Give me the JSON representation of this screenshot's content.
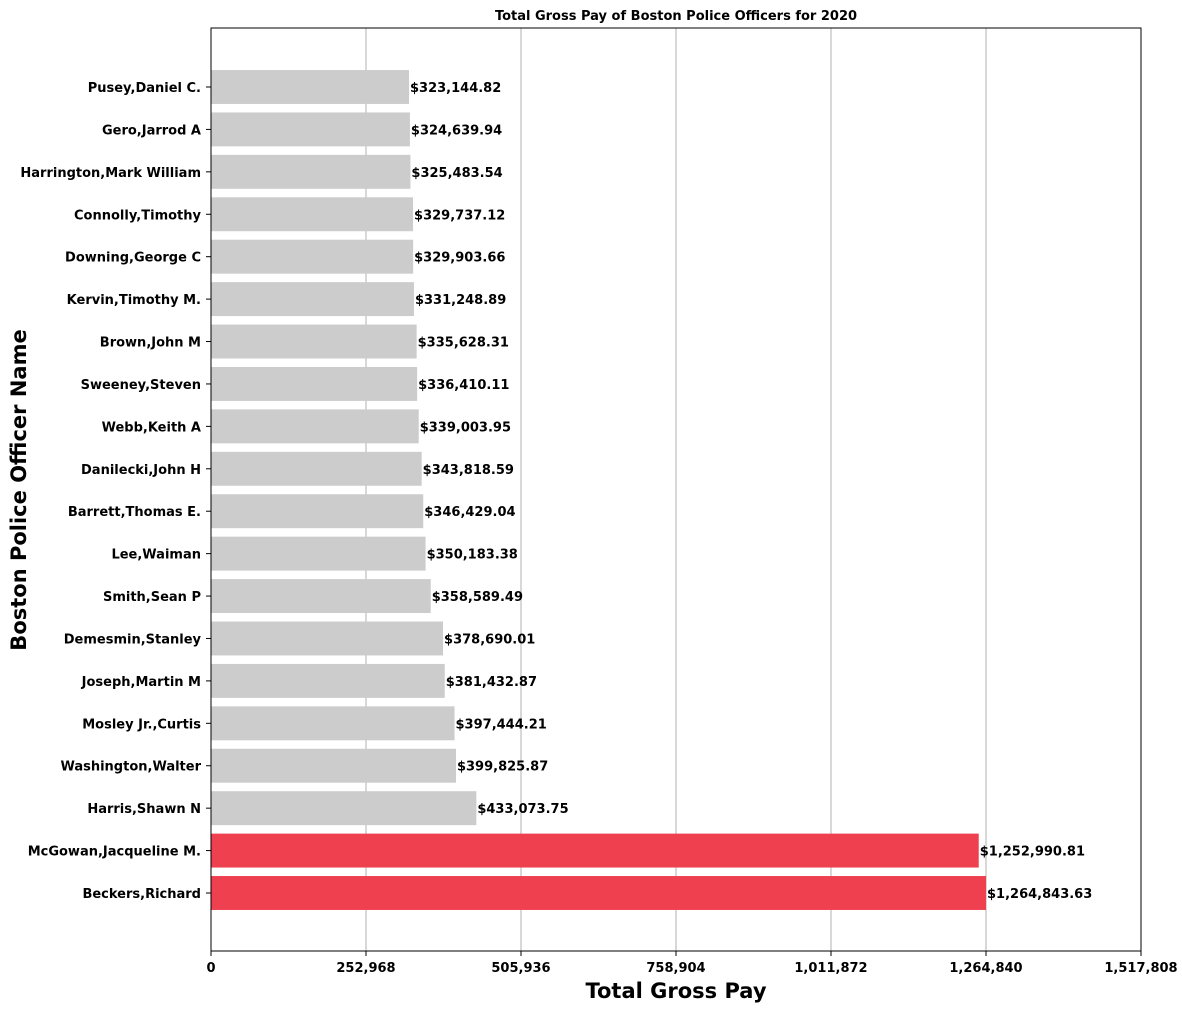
{
  "chart_data": {
    "type": "bar",
    "orientation": "horizontal",
    "title": "Total  Gross Pay of Boston Police Officers for 2020",
    "xlabel": "Total Gross Pay",
    "ylabel": "Boston Police Officer Name",
    "xlim": [
      0,
      1517808
    ],
    "xticks": [
      0,
      252968,
      505936,
      758904,
      1011872,
      1264840,
      1517808
    ],
    "xtick_labels": [
      "0",
      "252,968",
      "505,936",
      "758,904",
      "1,011,872",
      "1,264,840",
      "1,517,808"
    ],
    "grid": "x-axis vertical lines",
    "colors": {
      "default_bar": "#cccccc",
      "highlight_bar": "#ef4050",
      "grid": "#b0b0b0",
      "text": "#000000"
    },
    "categories": [
      "Pusey,Daniel C.",
      "Gero,Jarrod A",
      "Harrington,Mark William",
      "Connolly,Timothy",
      "Downing,George C",
      "Kervin,Timothy M.",
      "Brown,John M",
      "Sweeney,Steven",
      "Webb,Keith A",
      "Danilecki,John H",
      "Barrett,Thomas E.",
      "Lee,Waiman",
      "Smith,Sean P",
      "Demesmin,Stanley",
      "Joseph,Martin M",
      "Mosley Jr.,Curtis",
      "Washington,Walter",
      "Harris,Shawn N",
      "McGowan,Jacqueline M.",
      "Beckers,Richard"
    ],
    "values": [
      323144.82,
      324639.94,
      325483.54,
      329737.12,
      329903.66,
      331248.89,
      335628.31,
      336410.11,
      339003.95,
      343818.59,
      346429.04,
      350183.38,
      358589.49,
      378690.01,
      381432.87,
      397444.21,
      399825.87,
      433073.75,
      1252990.81,
      1264843.63
    ],
    "value_labels": [
      "$323,144.82",
      "$324,639.94",
      "$325,483.54",
      "$329,737.12",
      "$329,903.66",
      "$331,248.89",
      "$335,628.31",
      "$336,410.11",
      "$339,003.95",
      "$343,818.59",
      "$346,429.04",
      "$350,183.38",
      "$358,589.49",
      "$378,690.01",
      "$381,432.87",
      "$397,444.21",
      "$399,825.87",
      "$433,073.75",
      "$1,252,990.81",
      "$1,264,843.63"
    ],
    "highlighted": [
      false,
      false,
      false,
      false,
      false,
      false,
      false,
      false,
      false,
      false,
      false,
      false,
      false,
      false,
      false,
      false,
      false,
      false,
      true,
      true
    ]
  }
}
